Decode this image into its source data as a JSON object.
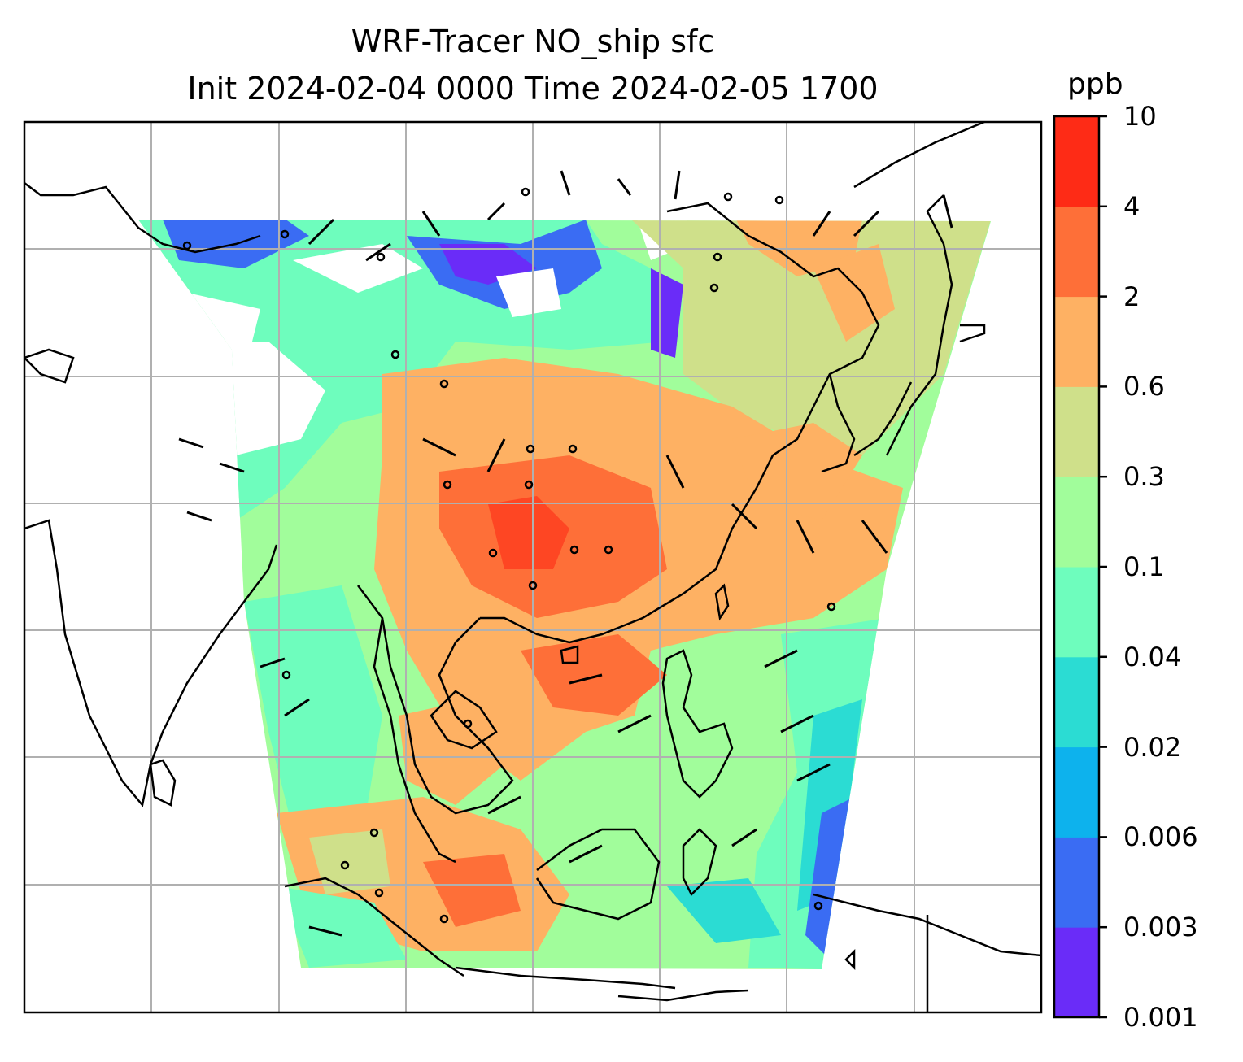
{
  "title": {
    "line1": "WRF-Tracer NO_ship sfc",
    "line2": "Init 2024-02-04 0000 Time 2024-02-05 1700"
  },
  "colorbar": {
    "units": "ppb",
    "tick_labels": [
      "0.001",
      "0.003",
      "0.006",
      "0.02",
      "0.04",
      "0.1",
      "0.3",
      "0.6",
      "2",
      "4",
      "10"
    ],
    "colors": [
      "#6a2cf8",
      "#3a6cf3",
      "#0db2ed",
      "#2bdcd3",
      "#6efdbd",
      "#a1fd9b",
      "#cfe08a",
      "#feb163",
      "#fe6f38",
      "#fe2b16"
    ]
  },
  "palette": {
    "low": "#6a2cf8",
    "mid": "#8ffba8",
    "high": "#fe7a3c",
    "peak": "#fe2b16",
    "coast": "#000000",
    "grid": "#b0b0b0"
  }
}
